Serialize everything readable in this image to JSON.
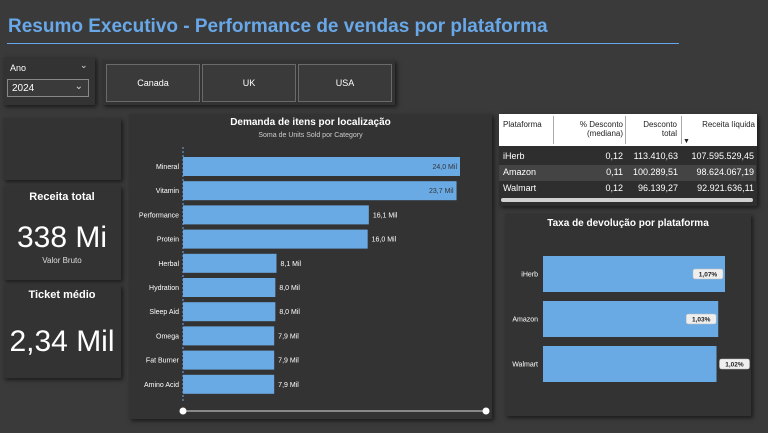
{
  "header": {
    "title": "Resumo Executivo - Performance de vendas por plataforma"
  },
  "year_slicer": {
    "label": "Ano",
    "value": "2024"
  },
  "country_buttons": [
    "Canada",
    "UK",
    "USA"
  ],
  "kpis": {
    "revenue": {
      "label": "Receita total",
      "value": "338 Mi",
      "sub": "Valor Bruto"
    },
    "ticket": {
      "label": "Ticket médio",
      "value": "2,34 Mil"
    }
  },
  "demand_chart": {
    "title": "Demanda de itens por localização",
    "subtitle": "Soma de Units Sold por Category"
  },
  "return_chart": {
    "title": "Taxa de devolução por plataforma"
  },
  "table": {
    "headers": [
      "Plataforma",
      "% Desconto (mediana)",
      "Desconto total",
      "Receita líquida"
    ],
    "rows": [
      [
        "iHerb",
        "0,12",
        "113.410,63",
        "107.595.529,45"
      ],
      [
        "Amazon",
        "0,11",
        "100.289,51",
        "98.624.067,19"
      ],
      [
        "Walmart",
        "0,12",
        "96.139,27",
        "92.921.636,11"
      ]
    ]
  },
  "colors": {
    "accent": "#69a8e8",
    "bar": "#6aaae4",
    "panel": "#333333",
    "background": "#3a3a3a"
  },
  "chart_data": [
    {
      "type": "bar",
      "orientation": "horizontal",
      "title": "Demanda de itens por localização",
      "subtitle": "Soma de Units Sold por Category",
      "categories": [
        "Mineral",
        "Vitamin",
        "Performance",
        "Protein",
        "Herbal",
        "Hydration",
        "Sleep Aid",
        "Omega",
        "Fat Burner",
        "Amino Acid"
      ],
      "values": [
        24.0,
        23.7,
        16.1,
        16.0,
        8.1,
        8.0,
        8.0,
        7.9,
        7.9,
        7.9
      ],
      "labels": [
        "24,0 Mil",
        "23,7 Mil",
        "16,1 Mil",
        "16,0 Mil",
        "8,1 Mil",
        "8,0 Mil",
        "8,0 Mil",
        "7,9 Mil",
        "7,9 Mil",
        "7,9 Mil"
      ],
      "xlim": [
        0,
        24.0
      ],
      "grid": false
    },
    {
      "type": "bar",
      "orientation": "horizontal",
      "title": "Taxa de devolução por plataforma",
      "categories": [
        "iHerb",
        "Amazon",
        "Walmart"
      ],
      "values": [
        1.07,
        1.03,
        1.02
      ],
      "labels": [
        "1,07%",
        "1,03%",
        "1,02%"
      ],
      "xlim": [
        0,
        1.07
      ],
      "grid": false
    }
  ]
}
